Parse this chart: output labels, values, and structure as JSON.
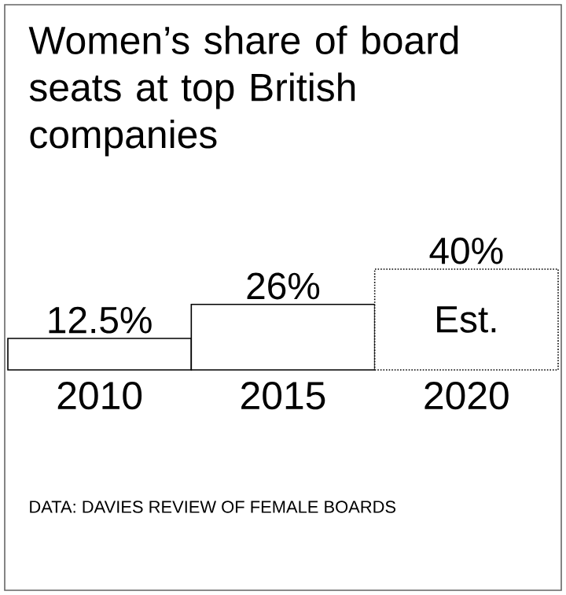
{
  "chart_data": {
    "type": "bar",
    "title": "Women’s share of board seats at top British companies",
    "categories": [
      "2010",
      "2015",
      "2020"
    ],
    "series": [
      {
        "color": "#ffffff",
        "values": [
          12.5,
          26,
          null
        ],
        "value_labels": [
          "12.5%",
          "26%",
          null
        ]
      },
      {
        "color": "#ffffff",
        "values": [
          null,
          null,
          40
        ],
        "value_labels": [
          null,
          null,
          "40%"
        ],
        "line_style": "dotted"
      }
    ],
    "annotations": [
      "Est.",
      "DATA: DAVIES REVIEW OF FEMALE BOARDS"
    ]
  }
}
